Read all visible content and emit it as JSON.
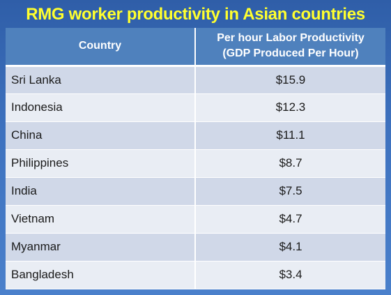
{
  "title": "RMG worker productivity in Asian countries",
  "colors": {
    "background": "#3a6bb4",
    "title_text": "#ffff2e",
    "header_fill": "#4f81bd",
    "row_odd": "#d0d8e8",
    "row_even": "#e9edf4"
  },
  "table": {
    "headers": {
      "country": "Country",
      "productivity_line1": "Per hour Labor Productivity",
      "productivity_line2": "(GDP Produced Per Hour)"
    },
    "rows": [
      {
        "country": "Sri Lanka",
        "value": "$15.9"
      },
      {
        "country": "Indonesia",
        "value": "$12.3"
      },
      {
        "country": "China",
        "value": "$11.1"
      },
      {
        "country": "Philippines",
        "value": "$8.7"
      },
      {
        "country": "India",
        "value": "$7.5"
      },
      {
        "country": "Vietnam",
        "value": "$4.7"
      },
      {
        "country": "Myanmar",
        "value": "$4.1"
      },
      {
        "country": "Bangladesh",
        "value": "$3.4"
      }
    ]
  }
}
